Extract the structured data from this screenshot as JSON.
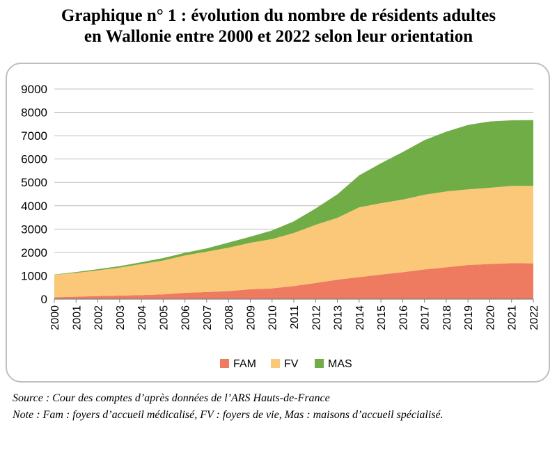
{
  "title": {
    "line1": "Graphique n° 1 : évolution du nombre de résidents adultes",
    "line2": "en Wallonie entre 2000 et 2022 selon leur orientation"
  },
  "source": "Source : Cour des comptes d’après données de l’ARS Hauts-de-France",
  "note": "Note : Fam : foyers d’accueil médicalisé, FV : foyers de vie, Mas : maisons d’accueil spécialisé.",
  "chart_data": {
    "type": "area",
    "stacked": true,
    "title": "",
    "xlabel": "",
    "ylabel": "",
    "x": [
      2000,
      2001,
      2002,
      2003,
      2004,
      2005,
      2006,
      2007,
      2008,
      2009,
      2010,
      2011,
      2012,
      2013,
      2014,
      2015,
      2016,
      2017,
      2018,
      2019,
      2020,
      2021,
      2022
    ],
    "ylim": [
      0,
      9000
    ],
    "yticks": [
      0,
      1000,
      2000,
      3000,
      4000,
      5000,
      6000,
      7000,
      8000,
      9000
    ],
    "grid": true,
    "legend_position": "bottom",
    "series": [
      {
        "name": "FAM",
        "color": "#ee7b60",
        "values": [
          80,
          100,
          130,
          150,
          170,
          200,
          270,
          300,
          340,
          420,
          460,
          560,
          690,
          830,
          940,
          1050,
          1150,
          1270,
          1360,
          1460,
          1500,
          1540,
          1530
        ]
      },
      {
        "name": "FV",
        "color": "#fac878",
        "values": [
          960,
          1020,
          1100,
          1200,
          1330,
          1450,
          1600,
          1730,
          1860,
          1990,
          2110,
          2270,
          2490,
          2650,
          2990,
          3060,
          3110,
          3200,
          3250,
          3240,
          3270,
          3310,
          3320
        ]
      },
      {
        "name": "MAS",
        "color": "#70ad47",
        "values": [
          10,
          40,
          50,
          60,
          80,
          110,
          110,
          140,
          220,
          260,
          370,
          500,
          700,
          1010,
          1370,
          1710,
          2040,
          2340,
          2560,
          2760,
          2840,
          2810,
          2820
        ]
      }
    ]
  }
}
